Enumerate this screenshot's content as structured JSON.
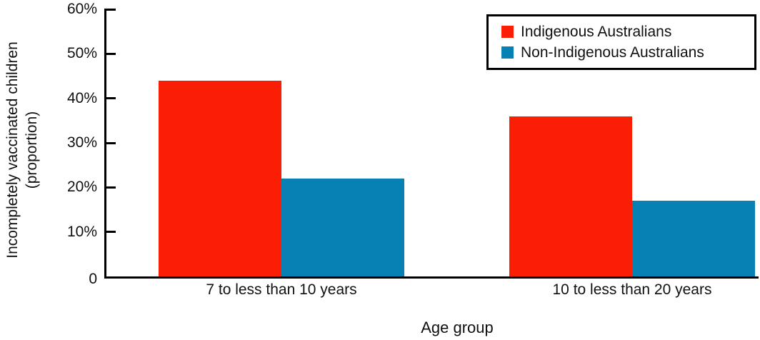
{
  "chart_data": {
    "type": "bar",
    "title": "",
    "xlabel": "Age group",
    "ylabel": "Incompletely vaccinated children (proportion)",
    "ylabel_lines": [
      "Incompletely vaccinated children",
      "(proportion)"
    ],
    "categories": [
      "7 to less than 10 years",
      "10 to less than 20 years"
    ],
    "series": [
      {
        "name": "Indigenous Australians",
        "color": "#fa1e05",
        "values": [
          44,
          36
        ]
      },
      {
        "name": "Non-Indigenous Australians",
        "color": "#0780b4",
        "values": [
          22,
          17
        ]
      }
    ],
    "value_unit": "%",
    "ylim": [
      0,
      60
    ],
    "ytick_values": [
      60,
      50,
      40,
      30,
      20,
      10,
      0
    ],
    "ytick_labels": [
      "60%",
      "50%",
      "40%",
      "30%",
      "20%",
      "10%",
      "0"
    ],
    "grid": false,
    "legend_position": "top-right",
    "axis_color": "#000000",
    "background": "#ffffff"
  }
}
